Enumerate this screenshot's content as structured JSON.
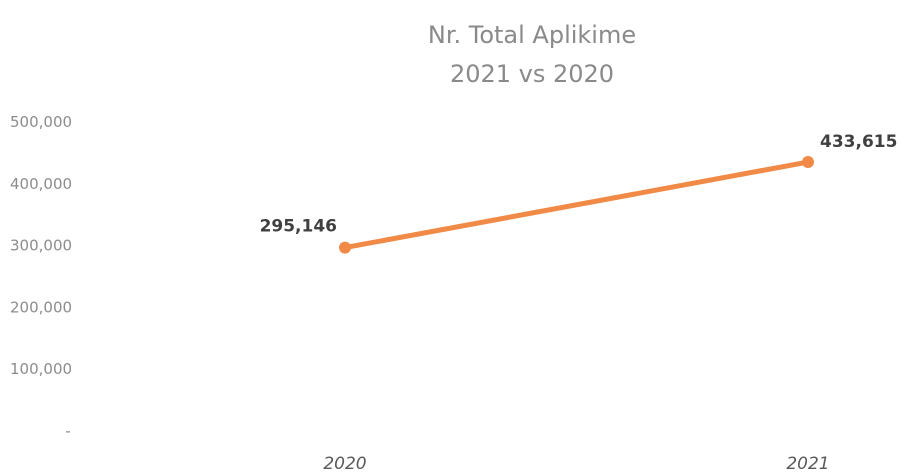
{
  "chart_data": {
    "type": "line",
    "title_lines": [
      "Nr. Total Aplikime",
      "2021 vs 2020"
    ],
    "categories": [
      "2020",
      "2021"
    ],
    "series": [
      {
        "values": [
          295146,
          433615
        ],
        "data_labels": [
          "295,146",
          "433,615"
        ],
        "color": "#f08a46"
      }
    ],
    "xlabel": "",
    "ylabel": "",
    "ylim": [
      0,
      500000
    ],
    "y_ticks": [
      500000,
      400000,
      300000,
      200000,
      100000,
      0
    ],
    "y_tick_labels": [
      "500,000",
      "400,000",
      "300,000",
      "200,000",
      "100,000",
      "-"
    ],
    "grid": false,
    "legend": "none"
  }
}
